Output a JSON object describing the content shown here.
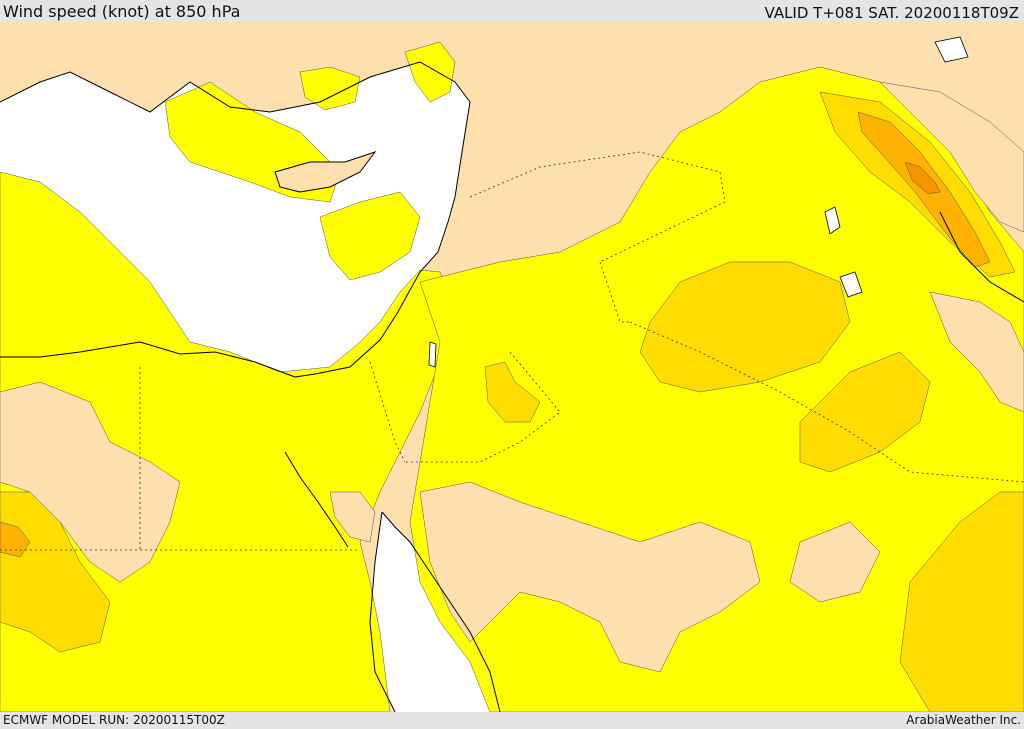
{
  "header": {
    "title": "Wind speed (knot) at 850 hPa",
    "valid": "VALID T+081 SAT. 20200118T09Z"
  },
  "footer": {
    "model_run": "ECMWF MODEL RUN: 20200115T00Z",
    "credit": "ArabiaWeather Inc."
  },
  "colors": {
    "land_calm": "#fde0ad",
    "sea": "#ffffff",
    "wind_yellow": "#ffff00",
    "wind_gold": "#ffdd00",
    "wind_orange": "#ffb300",
    "wind_dark_orange": "#f59300"
  }
}
